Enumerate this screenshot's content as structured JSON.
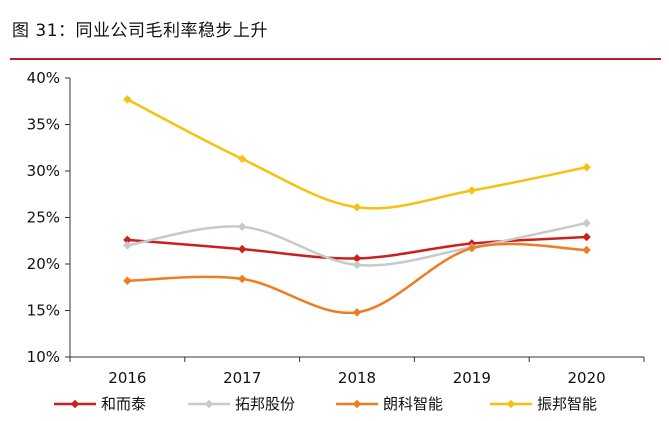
{
  "figure": {
    "title": "图 31：同业公司毛利率稳步上升"
  },
  "chart_data": {
    "type": "line",
    "title": "",
    "xlabel": "",
    "ylabel": "",
    "categories": [
      "2016",
      "2017",
      "2018",
      "2019",
      "2020"
    ],
    "ylim": [
      10,
      40
    ],
    "yticks": [
      "10%",
      "15%",
      "20%",
      "25%",
      "30%",
      "35%",
      "40%"
    ],
    "y_unit": "%",
    "grid": false,
    "smooth": true,
    "legend_position": "bottom",
    "series": [
      {
        "name": "和而泰",
        "color": "#cc1f1f",
        "values": [
          22.6,
          21.6,
          20.6,
          22.2,
          22.9
        ]
      },
      {
        "name": "拓邦股份",
        "color": "#c9c9c9",
        "values": [
          22.0,
          24.0,
          19.9,
          21.8,
          24.4
        ]
      },
      {
        "name": "朗科智能",
        "color": "#ee7d22",
        "values": [
          18.2,
          18.4,
          14.8,
          21.7,
          21.5
        ]
      },
      {
        "name": "振邦智能",
        "color": "#f5c20f",
        "values": [
          37.7,
          31.3,
          26.1,
          27.9,
          30.4
        ]
      }
    ]
  }
}
